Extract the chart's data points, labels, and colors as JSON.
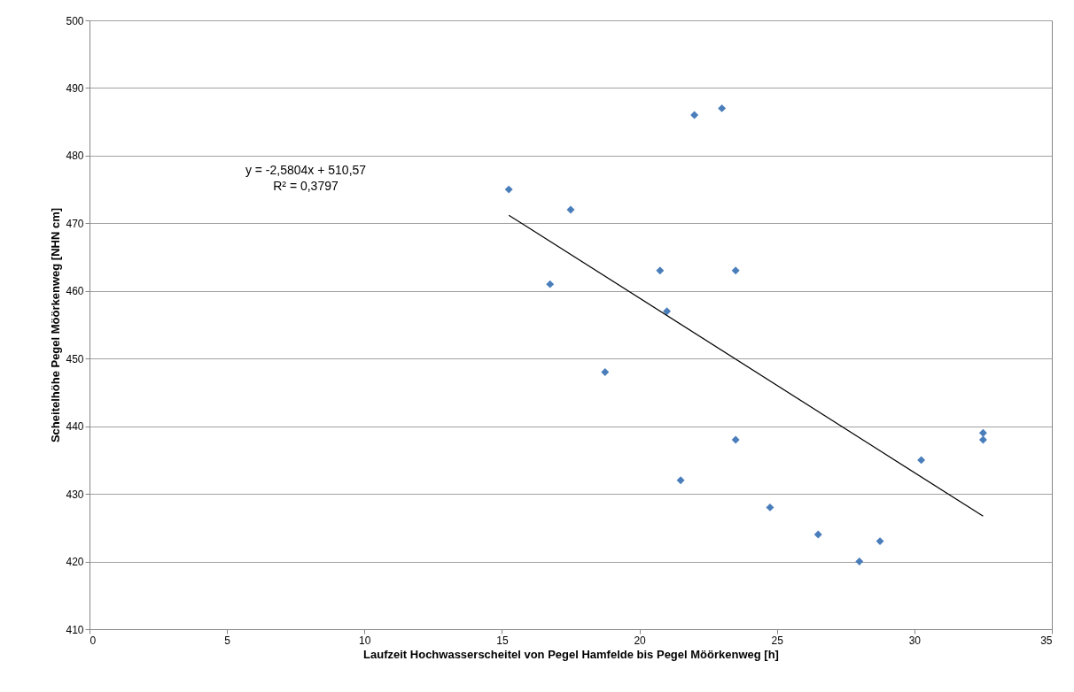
{
  "chart_data": {
    "type": "scatter",
    "xlabel": "Laufzeit Hochwasserscheitel von Pegel Hamfelde bis Pegel Möörkenweg [h]",
    "ylabel": "Scheitelhöhe Pegel Möörkenweg [NHN cm]",
    "annotations": [
      "y = -2,5804x + 510,57",
      "R² = 0,3797"
    ],
    "series": [
      {
        "color": "#4a7ebb",
        "marker": "diamond",
        "x": [
          15.25,
          16.75,
          17.5,
          18.75,
          20.75,
          21.0,
          22.0,
          23.0,
          23.5,
          21.5,
          23.5,
          24.75,
          26.5,
          28.0,
          28.75,
          30.25,
          32.5,
          32.5
        ],
        "values": [
          475,
          461,
          472,
          448,
          463,
          457,
          486,
          487,
          463,
          432,
          438,
          428,
          424,
          420,
          423,
          435,
          439,
          438
        ]
      },
      {
        "type": "line",
        "color": "#000000",
        "marker": "none",
        "x": [
          15.25,
          32.5
        ],
        "values": [
          471.2,
          426.7
        ]
      }
    ],
    "xlim": [
      0,
      35
    ],
    "xticks": [
      0,
      5,
      10,
      15,
      20,
      25,
      30,
      35
    ],
    "ylim": [
      410,
      500
    ],
    "yticks": [
      410,
      420,
      430,
      440,
      450,
      460,
      470,
      480,
      490,
      500
    ],
    "grid": "y"
  }
}
